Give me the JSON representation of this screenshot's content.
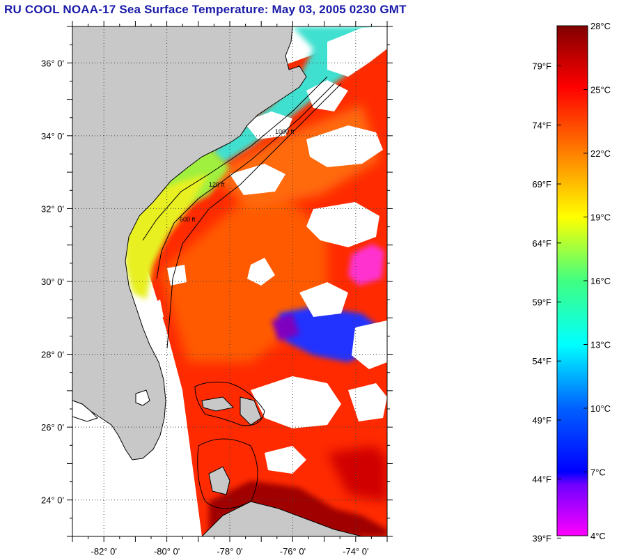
{
  "title": "RU COOL  NOAA-17  Sea Surface Temperature:  May 03, 2005 0230 GMT",
  "map": {
    "lon_range": [
      -83,
      -73
    ],
    "lat_range": [
      23,
      37
    ],
    "lat_labels": [
      "36° 0'",
      "34° 0'",
      "32° 0'",
      "30° 0'",
      "28° 0'",
      "26° 0'",
      "24° 0'"
    ],
    "lat_values": [
      36,
      34,
      32,
      30,
      28,
      26,
      24
    ],
    "lon_labels": [
      "-82° 0'",
      "-80° 0'",
      "-78° 0'",
      "-76° 0'",
      "-74° 0'"
    ],
    "lon_values": [
      -82,
      -80,
      -78,
      -76,
      -74
    ],
    "land_color": "#c8c8c8",
    "no_data_color": "#ffffff",
    "contour_labels": [
      "120 ft",
      "600 ft",
      "1000 ft"
    ],
    "grid": "dotted"
  },
  "colorbar": {
    "celsius_labels": [
      "28°C",
      "25°C",
      "22°C",
      "19°C",
      "16°C",
      "13°C",
      "10°C",
      "7°C",
      "4°C"
    ],
    "celsius_values": [
      28,
      25,
      22,
      19,
      16,
      13,
      10,
      7,
      4
    ],
    "fahrenheit_labels": [
      "79°F",
      "74°F",
      "69°F",
      "64°F",
      "59°F",
      "54°F",
      "49°F",
      "44°F",
      "39°F"
    ],
    "fahrenheit_values": [
      79,
      74,
      69,
      64,
      59,
      54,
      49,
      44,
      39
    ],
    "range_celsius": [
      4,
      28
    ]
  },
  "colors": {
    "title": "#1a1aa8",
    "palette": [
      "#800000",
      "#ff0000",
      "#ff8000",
      "#ffff00",
      "#80ff00",
      "#00ff80",
      "#00ffff",
      "#0080ff",
      "#0000ff",
      "#8000ff",
      "#ff00ff"
    ]
  }
}
